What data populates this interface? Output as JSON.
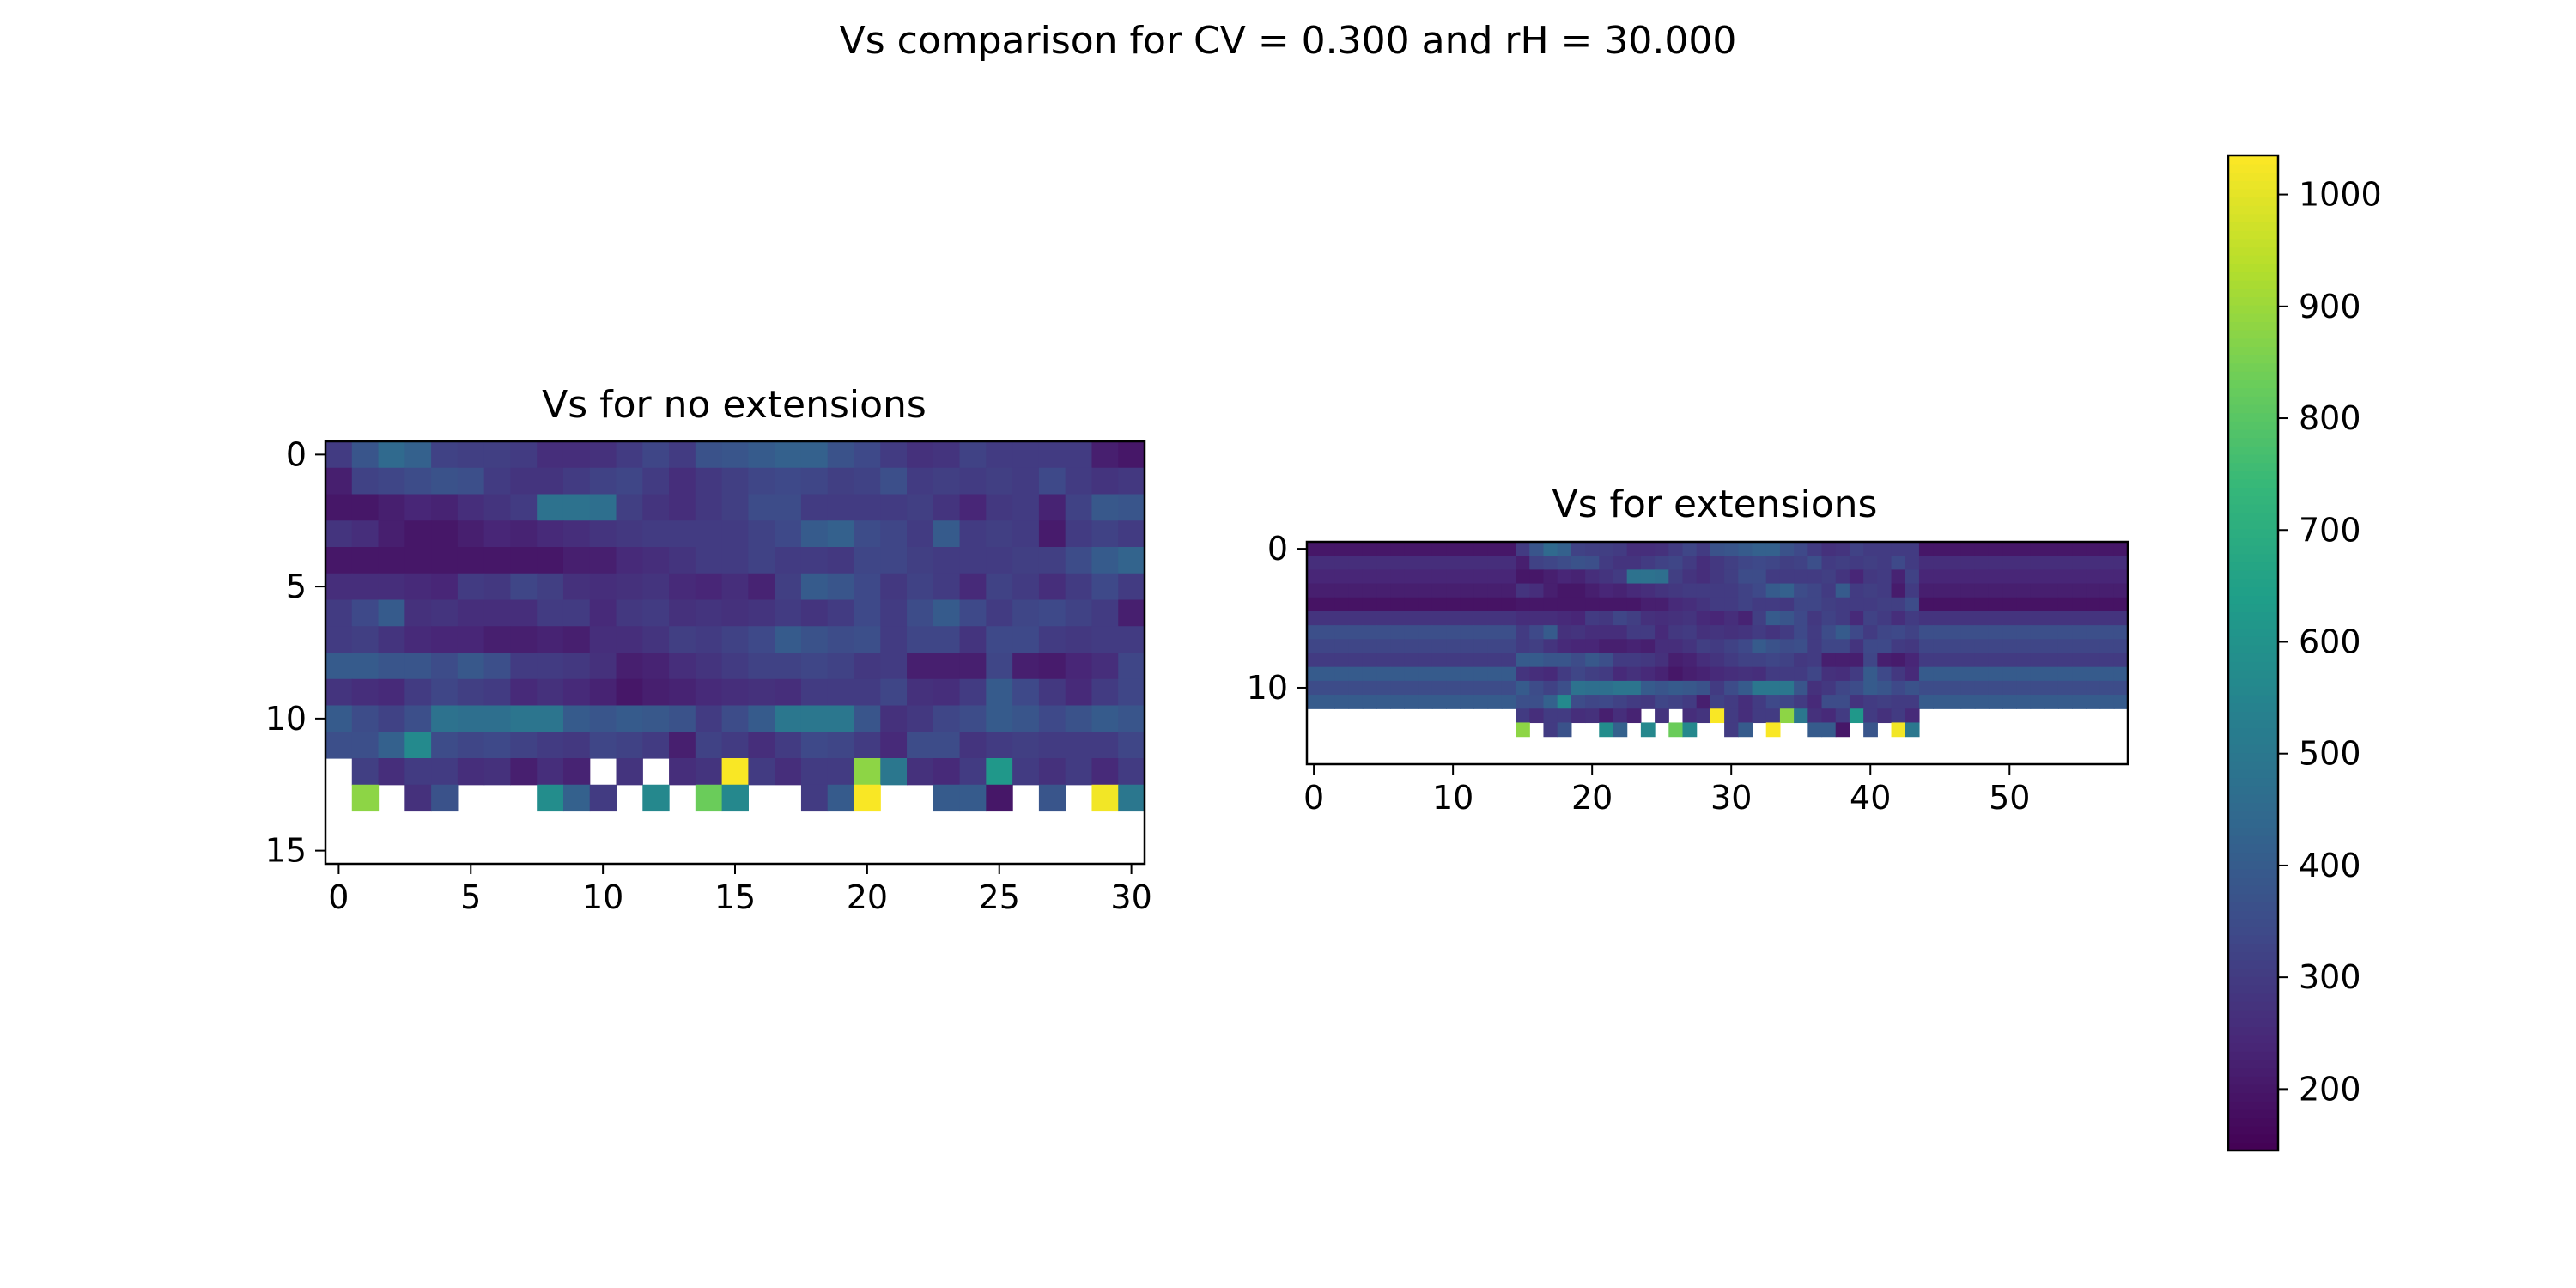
{
  "figure": {
    "suptitle": "Vs comparison for CV = 0.300 and rH = 30.000"
  },
  "colors": {
    "background": "#ffffff",
    "axis": "#000000",
    "colormap": "viridis"
  },
  "chart_data": [
    {
      "type": "heatmap",
      "title": "Vs for no extensions",
      "xlabel": "",
      "ylabel": "",
      "n_cols": 31,
      "n_rows": 16,
      "xlim": [
        -0.5,
        30.5
      ],
      "ylim": [
        15.5,
        -0.5
      ],
      "x_ticks": [
        0,
        5,
        10,
        15,
        20,
        25,
        30
      ],
      "y_ticks": [
        0,
        5,
        10,
        15
      ],
      "note_values": "Vs values estimated from colour; null = blank cell",
      "values": [
        [
          300,
          380,
          450,
          420,
          320,
          310,
          310,
          300,
          260,
          260,
          270,
          300,
          330,
          300,
          370,
          380,
          400,
          420,
          420,
          370,
          340,
          300,
          270,
          280,
          320,
          300,
          300,
          300,
          300,
          220,
          200
        ],
        [
          220,
          320,
          330,
          350,
          370,
          360,
          300,
          280,
          280,
          300,
          320,
          330,
          300,
          260,
          290,
          310,
          330,
          340,
          330,
          310,
          320,
          360,
          300,
          310,
          300,
          310,
          300,
          340,
          300,
          280,
          290
        ],
        [
          200,
          200,
          220,
          240,
          230,
          260,
          280,
          300,
          480,
          480,
          470,
          310,
          280,
          260,
          290,
          310,
          350,
          350,
          300,
          300,
          300,
          300,
          310,
          280,
          240,
          290,
          300,
          230,
          320,
          390,
          380
        ],
        [
          280,
          260,
          220,
          200,
          200,
          220,
          240,
          230,
          250,
          260,
          280,
          290,
          300,
          300,
          300,
          300,
          320,
          340,
          400,
          420,
          350,
          330,
          300,
          400,
          300,
          310,
          300,
          210,
          300,
          320,
          300
        ],
        [
          200,
          200,
          200,
          200,
          200,
          200,
          200,
          200,
          200,
          220,
          220,
          250,
          260,
          280,
          300,
          300,
          320,
          300,
          300,
          290,
          330,
          330,
          310,
          300,
          300,
          300,
          310,
          310,
          350,
          400,
          430
        ],
        [
          260,
          260,
          260,
          250,
          240,
          300,
          290,
          330,
          310,
          270,
          260,
          270,
          280,
          250,
          240,
          260,
          230,
          310,
          400,
          380,
          340,
          290,
          320,
          300,
          250,
          320,
          300,
          260,
          300,
          340,
          300
        ],
        [
          300,
          340,
          400,
          270,
          280,
          260,
          260,
          260,
          300,
          300,
          250,
          290,
          300,
          270,
          280,
          270,
          280,
          300,
          280,
          300,
          340,
          300,
          350,
          400,
          340,
          300,
          330,
          340,
          320,
          300,
          220
        ],
        [
          300,
          310,
          280,
          250,
          240,
          240,
          220,
          220,
          230,
          220,
          260,
          260,
          280,
          310,
          300,
          320,
          340,
          400,
          370,
          350,
          360,
          300,
          330,
          330,
          280,
          340,
          340,
          300,
          290,
          300,
          300
        ],
        [
          400,
          400,
          380,
          380,
          350,
          390,
          360,
          300,
          300,
          290,
          270,
          220,
          230,
          260,
          280,
          300,
          320,
          320,
          330,
          320,
          290,
          300,
          220,
          220,
          220,
          330,
          220,
          210,
          240,
          260,
          330
        ],
        [
          280,
          260,
          250,
          300,
          330,
          310,
          300,
          250,
          270,
          250,
          230,
          200,
          220,
          230,
          250,
          260,
          270,
          260,
          300,
          300,
          300,
          330,
          270,
          260,
          300,
          400,
          340,
          290,
          250,
          300,
          330
        ],
        [
          400,
          350,
          320,
          360,
          480,
          470,
          470,
          490,
          490,
          400,
          380,
          400,
          390,
          370,
          300,
          350,
          400,
          500,
          500,
          500,
          380,
          270,
          290,
          330,
          350,
          400,
          380,
          340,
          370,
          400,
          380
        ],
        [
          360,
          360,
          420,
          570,
          350,
          330,
          340,
          320,
          300,
          290,
          330,
          320,
          300,
          220,
          320,
          300,
          260,
          300,
          340,
          330,
          300,
          250,
          350,
          350,
          280,
          300,
          310,
          300,
          300,
          300,
          330
        ],
        [
          null,
          310,
          260,
          300,
          300,
          260,
          270,
          220,
          260,
          230,
          null,
          280,
          null,
          260,
          280,
          1030,
          300,
          260,
          300,
          300,
          880,
          500,
          270,
          250,
          300,
          620,
          300,
          270,
          300,
          250,
          300
        ],
        [
          null,
          880,
          null,
          270,
          370,
          null,
          null,
          null,
          580,
          420,
          300,
          null,
          560,
          null,
          830,
          560,
          null,
          null,
          300,
          400,
          1030,
          null,
          null,
          400,
          400,
          200,
          null,
          380,
          null,
          1020,
          500
        ],
        [
          null,
          null,
          null,
          null,
          null,
          null,
          null,
          null,
          null,
          null,
          null,
          null,
          null,
          null,
          null,
          null,
          null,
          null,
          null,
          null,
          null,
          null,
          null,
          null,
          null,
          null,
          null,
          null,
          null,
          null,
          null
        ],
        [
          null,
          null,
          null,
          null,
          null,
          null,
          null,
          null,
          null,
          null,
          null,
          null,
          null,
          null,
          null,
          null,
          null,
          null,
          null,
          null,
          null,
          null,
          null,
          null,
          null,
          null,
          null,
          null,
          null,
          null,
          null
        ]
      ]
    },
    {
      "type": "heatmap",
      "title": "Vs for extensions",
      "xlabel": "",
      "ylabel": "",
      "n_cols": 59,
      "n_rows": 16,
      "xlim": [
        -0.5,
        58.5
      ],
      "ylim": [
        15.5,
        -0.5
      ],
      "x_ticks": [
        0,
        10,
        20,
        30,
        40,
        50
      ],
      "y_ticks": [
        0,
        10
      ],
      "note_values": "Vs values estimated from colour; columns 0-14 and 44-58 are row-constant extensions",
      "edge_rows": [
        200,
        260,
        240,
        220,
        190,
        280,
        360,
        330,
        300,
        400,
        350,
        400
      ],
      "middle_cols_start": 15,
      "middle_rows": [
        [
          300,
          380,
          450,
          420,
          320,
          310,
          310,
          300,
          260,
          260,
          270,
          300,
          330,
          300,
          370,
          380,
          400,
          420,
          420,
          370,
          340,
          300,
          270,
          280,
          320,
          300,
          300,
          300,
          300
        ],
        [
          220,
          320,
          330,
          350,
          370,
          360,
          300,
          280,
          280,
          300,
          320,
          330,
          300,
          260,
          290,
          310,
          330,
          340,
          330,
          310,
          320,
          360,
          300,
          310,
          300,
          310,
          300,
          340,
          300
        ],
        [
          200,
          200,
          220,
          240,
          230,
          260,
          280,
          300,
          480,
          480,
          470,
          310,
          280,
          260,
          290,
          310,
          350,
          350,
          300,
          300,
          300,
          300,
          310,
          280,
          240,
          290,
          300,
          230,
          320
        ],
        [
          280,
          260,
          220,
          200,
          200,
          220,
          240,
          230,
          250,
          260,
          280,
          290,
          300,
          300,
          300,
          300,
          320,
          340,
          400,
          420,
          350,
          330,
          300,
          400,
          300,
          310,
          300,
          210,
          300
        ],
        [
          200,
          200,
          200,
          200,
          200,
          200,
          200,
          200,
          200,
          220,
          220,
          250,
          260,
          280,
          300,
          300,
          320,
          300,
          300,
          290,
          330,
          330,
          310,
          300,
          300,
          300,
          310,
          310,
          350
        ],
        [
          260,
          260,
          260,
          250,
          240,
          300,
          290,
          330,
          310,
          270,
          260,
          270,
          280,
          250,
          240,
          260,
          230,
          310,
          400,
          380,
          340,
          290,
          320,
          300,
          250,
          320,
          300,
          260,
          300
        ],
        [
          300,
          340,
          400,
          270,
          280,
          260,
          260,
          260,
          300,
          300,
          250,
          290,
          300,
          270,
          280,
          270,
          280,
          300,
          280,
          300,
          340,
          300,
          350,
          400,
          340,
          300,
          330,
          340,
          320
        ],
        [
          300,
          310,
          280,
          250,
          240,
          240,
          220,
          220,
          230,
          220,
          260,
          260,
          280,
          310,
          300,
          320,
          340,
          400,
          370,
          350,
          360,
          300,
          330,
          330,
          280,
          340,
          340,
          300,
          290
        ],
        [
          400,
          400,
          380,
          380,
          350,
          390,
          360,
          300,
          300,
          290,
          270,
          220,
          230,
          260,
          280,
          300,
          320,
          320,
          330,
          320,
          290,
          300,
          220,
          220,
          220,
          330,
          220,
          210,
          240
        ],
        [
          280,
          260,
          250,
          300,
          330,
          310,
          300,
          250,
          270,
          250,
          230,
          200,
          220,
          230,
          250,
          260,
          270,
          260,
          300,
          300,
          300,
          330,
          270,
          260,
          300,
          400,
          340,
          290,
          250
        ],
        [
          400,
          350,
          320,
          360,
          480,
          470,
          470,
          490,
          490,
          400,
          380,
          400,
          390,
          370,
          300,
          350,
          400,
          500,
          500,
          500,
          380,
          270,
          290,
          330,
          350,
          400,
          380,
          340,
          370
        ],
        [
          360,
          360,
          420,
          570,
          350,
          330,
          340,
          320,
          300,
          290,
          330,
          320,
          300,
          220,
          320,
          300,
          260,
          300,
          340,
          330,
          300,
          250,
          350,
          350,
          280,
          300,
          310,
          300,
          300
        ]
      ],
      "row_12_cells": [
        [
          15,
          300
        ],
        [
          16,
          260
        ],
        [
          17,
          300
        ],
        [
          18,
          300
        ],
        [
          19,
          260
        ],
        [
          20,
          270
        ],
        [
          21,
          220
        ],
        [
          22,
          260
        ],
        [
          23,
          230
        ],
        [
          25,
          280
        ],
        [
          27,
          260
        ],
        [
          28,
          280
        ],
        [
          29,
          1030
        ],
        [
          30,
          300
        ],
        [
          31,
          260
        ],
        [
          32,
          300
        ],
        [
          33,
          300
        ],
        [
          34,
          880
        ],
        [
          35,
          500
        ],
        [
          36,
          270
        ],
        [
          37,
          250
        ],
        [
          38,
          300
        ],
        [
          39,
          620
        ],
        [
          40,
          300
        ],
        [
          41,
          270
        ],
        [
          42,
          300
        ],
        [
          43,
          250
        ]
      ],
      "row_13_cells": [
        [
          15,
          880
        ],
        [
          17,
          300
        ],
        [
          18,
          370
        ],
        [
          21,
          580
        ],
        [
          22,
          420
        ],
        [
          24,
          560
        ],
        [
          26,
          830
        ],
        [
          27,
          560
        ],
        [
          30,
          300
        ],
        [
          31,
          400
        ],
        [
          33,
          1030
        ],
        [
          36,
          400
        ],
        [
          37,
          400
        ],
        [
          38,
          200
        ],
        [
          40,
          380
        ],
        [
          42,
          1020
        ],
        [
          43,
          500
        ]
      ]
    }
  ],
  "colorbar": {
    "min": 145,
    "max": 1035,
    "ticks": [
      200,
      300,
      400,
      500,
      600,
      700,
      800,
      900,
      1000
    ]
  }
}
